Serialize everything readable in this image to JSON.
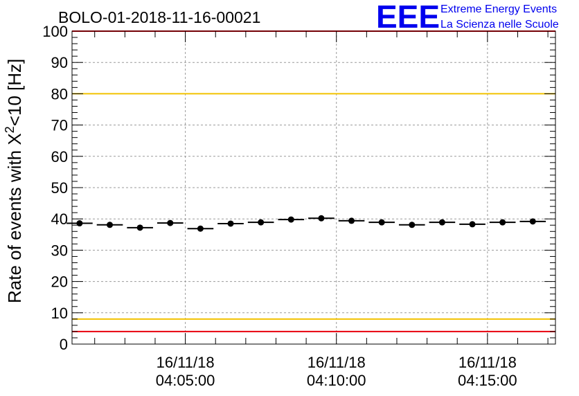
{
  "chart_data": {
    "type": "scatter",
    "title": "BOLO-01-2018-11-16-00021",
    "ylabel": "Rate of events with X",
    "ylabel_sup": "2",
    "ylabel_tail": "<10 [Hz]",
    "xlabel": "",
    "ylim": [
      0,
      100
    ],
    "y_ticks": [
      0,
      10,
      20,
      30,
      40,
      50,
      60,
      70,
      80,
      90,
      100
    ],
    "xlim_minutes": [
      1.25,
      17.25
    ],
    "x_ticks": [
      {
        "date": "16/11/18",
        "time": "04:05:00",
        "minute": 5
      },
      {
        "date": "16/11/18",
        "time": "04:10:00",
        "minute": 10
      },
      {
        "date": "16/11/18",
        "time": "04:15:00",
        "minute": 15
      }
    ],
    "bin_width_minutes": 1,
    "series": [
      {
        "x_minutes": [
          1.5,
          2.5,
          3.5,
          4.5,
          5.5,
          6.5,
          7.5,
          8.5,
          9.5,
          10.5,
          11.5,
          12.5,
          13.5,
          14.5,
          15.5,
          16.5
        ],
        "values": [
          38.6,
          38.1,
          37.2,
          38.7,
          36.9,
          38.5,
          38.9,
          39.8,
          40.2,
          39.4,
          38.9,
          38.1,
          38.9,
          38.3,
          38.9,
          39.2
        ]
      }
    ],
    "reference_lines": [
      {
        "y": 80,
        "color": "#f2c200"
      },
      {
        "y": 8,
        "color": "#f2c200"
      },
      {
        "y": 100,
        "color": "#e8000b"
      },
      {
        "y": 4,
        "color": "#e8000b"
      }
    ],
    "grid": true
  },
  "logo": {
    "mark": "EEE",
    "line1": "Extreme Energy Events",
    "line2": "La Scienza nelle Scuole",
    "color": "#0000ee"
  }
}
